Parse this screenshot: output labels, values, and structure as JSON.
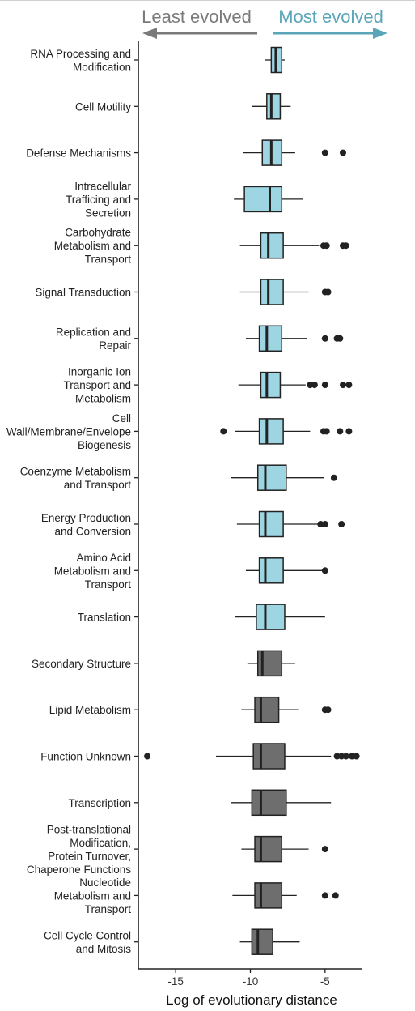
{
  "banner": {
    "left_text": "Least evolved",
    "right_text": "Most evolved",
    "left_color": "#7a7a7a",
    "right_color": "#5aa6b8"
  },
  "chart_data": {
    "type": "boxplot",
    "orientation": "horizontal",
    "xlabel": "Log of evolutionary distance",
    "xlim": [
      -17.5,
      -2.5
    ],
    "xticks": [
      -15,
      -10,
      -5
    ],
    "xtick_labels": [
      "-15",
      "-10",
      "-5"
    ],
    "grid": false,
    "fill_colors": {
      "most_evolved": "#9dd5e3",
      "least_evolved": "#6e6e6e"
    },
    "categories": [
      {
        "label": [
          "RNA Processing and",
          "Modification"
        ],
        "group": "most_evolved",
        "whisker_low": -9.0,
        "q1": -8.6,
        "median": -8.3,
        "q3": -7.9,
        "whisker_high": -7.7,
        "outliers": []
      },
      {
        "label": [
          "Cell Motility"
        ],
        "group": "most_evolved",
        "whisker_low": -9.9,
        "q1": -8.9,
        "median": -8.6,
        "q3": -8.0,
        "whisker_high": -7.3,
        "outliers": []
      },
      {
        "label": [
          "Defense Mechanisms"
        ],
        "group": "most_evolved",
        "whisker_low": -10.5,
        "q1": -9.2,
        "median": -8.6,
        "q3": -7.9,
        "whisker_high": -7.0,
        "outliers": [
          -5.0,
          -3.8
        ]
      },
      {
        "label": [
          "Intracellular",
          "Trafficing and",
          "Secretion"
        ],
        "group": "most_evolved",
        "whisker_low": -11.1,
        "q1": -10.4,
        "median": -8.7,
        "q3": -7.9,
        "whisker_high": -6.5,
        "outliers": []
      },
      {
        "label": [
          "Carbohydrate",
          "Metabolism and",
          "Transport"
        ],
        "group": "most_evolved",
        "whisker_low": -10.7,
        "q1": -9.3,
        "median": -8.8,
        "q3": -7.8,
        "whisker_high": -5.4,
        "outliers": [
          -5.1,
          -4.9,
          -3.8,
          -3.6
        ]
      },
      {
        "label": [
          "Signal Transduction"
        ],
        "group": "most_evolved",
        "whisker_low": -10.7,
        "q1": -9.3,
        "median": -8.8,
        "q3": -7.8,
        "whisker_high": -6.1,
        "outliers": [
          -5.0,
          -4.8
        ]
      },
      {
        "label": [
          "Replication and",
          "Repair"
        ],
        "group": "most_evolved",
        "whisker_low": -10.3,
        "q1": -9.4,
        "median": -8.9,
        "q3": -7.9,
        "whisker_high": -6.2,
        "outliers": [
          -5.0,
          -4.2,
          -4.0
        ]
      },
      {
        "label": [
          "Inorganic Ion",
          "Transport and",
          "Metabolism"
        ],
        "group": "most_evolved",
        "whisker_low": -10.8,
        "q1": -9.3,
        "median": -8.9,
        "q3": -8.0,
        "whisker_high": -6.3,
        "outliers": [
          -6.0,
          -5.7,
          -5.0,
          -3.8,
          -3.4
        ]
      },
      {
        "label": [
          "Cell",
          "Wall/Membrane/Envelope",
          "Biogenesis"
        ],
        "group": "most_evolved",
        "whisker_low": -11.0,
        "q1": -9.4,
        "median": -8.9,
        "q3": -7.8,
        "whisker_high": -6.0,
        "outliers": [
          -11.8,
          -5.1,
          -4.9,
          -4.0,
          -3.4
        ]
      },
      {
        "label": [
          "Coenzyme Metabolism",
          "and Transport"
        ],
        "group": "most_evolved",
        "whisker_low": -11.3,
        "q1": -9.5,
        "median": -9.0,
        "q3": -7.6,
        "whisker_high": -5.1,
        "outliers": [
          -4.4
        ]
      },
      {
        "label": [
          "Energy Production",
          "and Conversion"
        ],
        "group": "most_evolved",
        "whisker_low": -10.9,
        "q1": -9.4,
        "median": -9.0,
        "q3": -7.8,
        "whisker_high": -5.5,
        "outliers": [
          -5.3,
          -5.0,
          -3.9
        ]
      },
      {
        "label": [
          "Amino Acid",
          "Metabolism and",
          "Transport"
        ],
        "group": "most_evolved",
        "whisker_low": -10.3,
        "q1": -9.4,
        "median": -9.0,
        "q3": -7.8,
        "whisker_high": -5.0,
        "outliers": [
          -5.0
        ]
      },
      {
        "label": [
          "Translation"
        ],
        "group": "most_evolved",
        "whisker_low": -11.0,
        "q1": -9.6,
        "median": -9.0,
        "q3": -7.7,
        "whisker_high": -5.0,
        "outliers": []
      },
      {
        "label": [
          "Secondary Structure"
        ],
        "group": "least_evolved",
        "whisker_low": -10.2,
        "q1": -9.5,
        "median": -9.2,
        "q3": -7.9,
        "whisker_high": -7.0,
        "outliers": []
      },
      {
        "label": [
          "Lipid Metabolism"
        ],
        "group": "least_evolved",
        "whisker_low": -10.6,
        "q1": -9.7,
        "median": -9.3,
        "q3": -8.1,
        "whisker_high": -6.8,
        "outliers": [
          -5.0,
          -4.8
        ]
      },
      {
        "label": [
          "Function Unknown"
        ],
        "group": "least_evolved",
        "whisker_low": -12.3,
        "q1": -9.8,
        "median": -9.3,
        "q3": -7.7,
        "whisker_high": -4.6,
        "outliers": [
          -16.9,
          -4.2,
          -3.9,
          -3.6,
          -3.2,
          -2.9
        ]
      },
      {
        "label": [
          "Transcription"
        ],
        "group": "least_evolved",
        "whisker_low": -11.3,
        "q1": -9.9,
        "median": -9.3,
        "q3": -7.6,
        "whisker_high": -4.6,
        "outliers": []
      },
      {
        "label": [
          "Post-translational",
          "Modification,",
          "Protein Turnover,",
          "Chaperone Functions"
        ],
        "group": "least_evolved",
        "whisker_low": -10.6,
        "q1": -9.7,
        "median": -9.3,
        "q3": -7.9,
        "whisker_high": -6.1,
        "outliers": [
          -5.0
        ]
      },
      {
        "label": [
          "Nucleotide",
          "Metabolism and",
          "Transport"
        ],
        "group": "least_evolved",
        "whisker_low": -11.2,
        "q1": -9.7,
        "median": -9.3,
        "q3": -7.9,
        "whisker_high": -6.9,
        "outliers": [
          -5.0,
          -4.3
        ]
      },
      {
        "label": [
          "Cell Cycle Control",
          "and Mitosis"
        ],
        "group": "least_evolved",
        "whisker_low": -10.7,
        "q1": -9.9,
        "median": -9.5,
        "q3": -8.5,
        "whisker_high": -6.7,
        "outliers": []
      }
    ]
  }
}
